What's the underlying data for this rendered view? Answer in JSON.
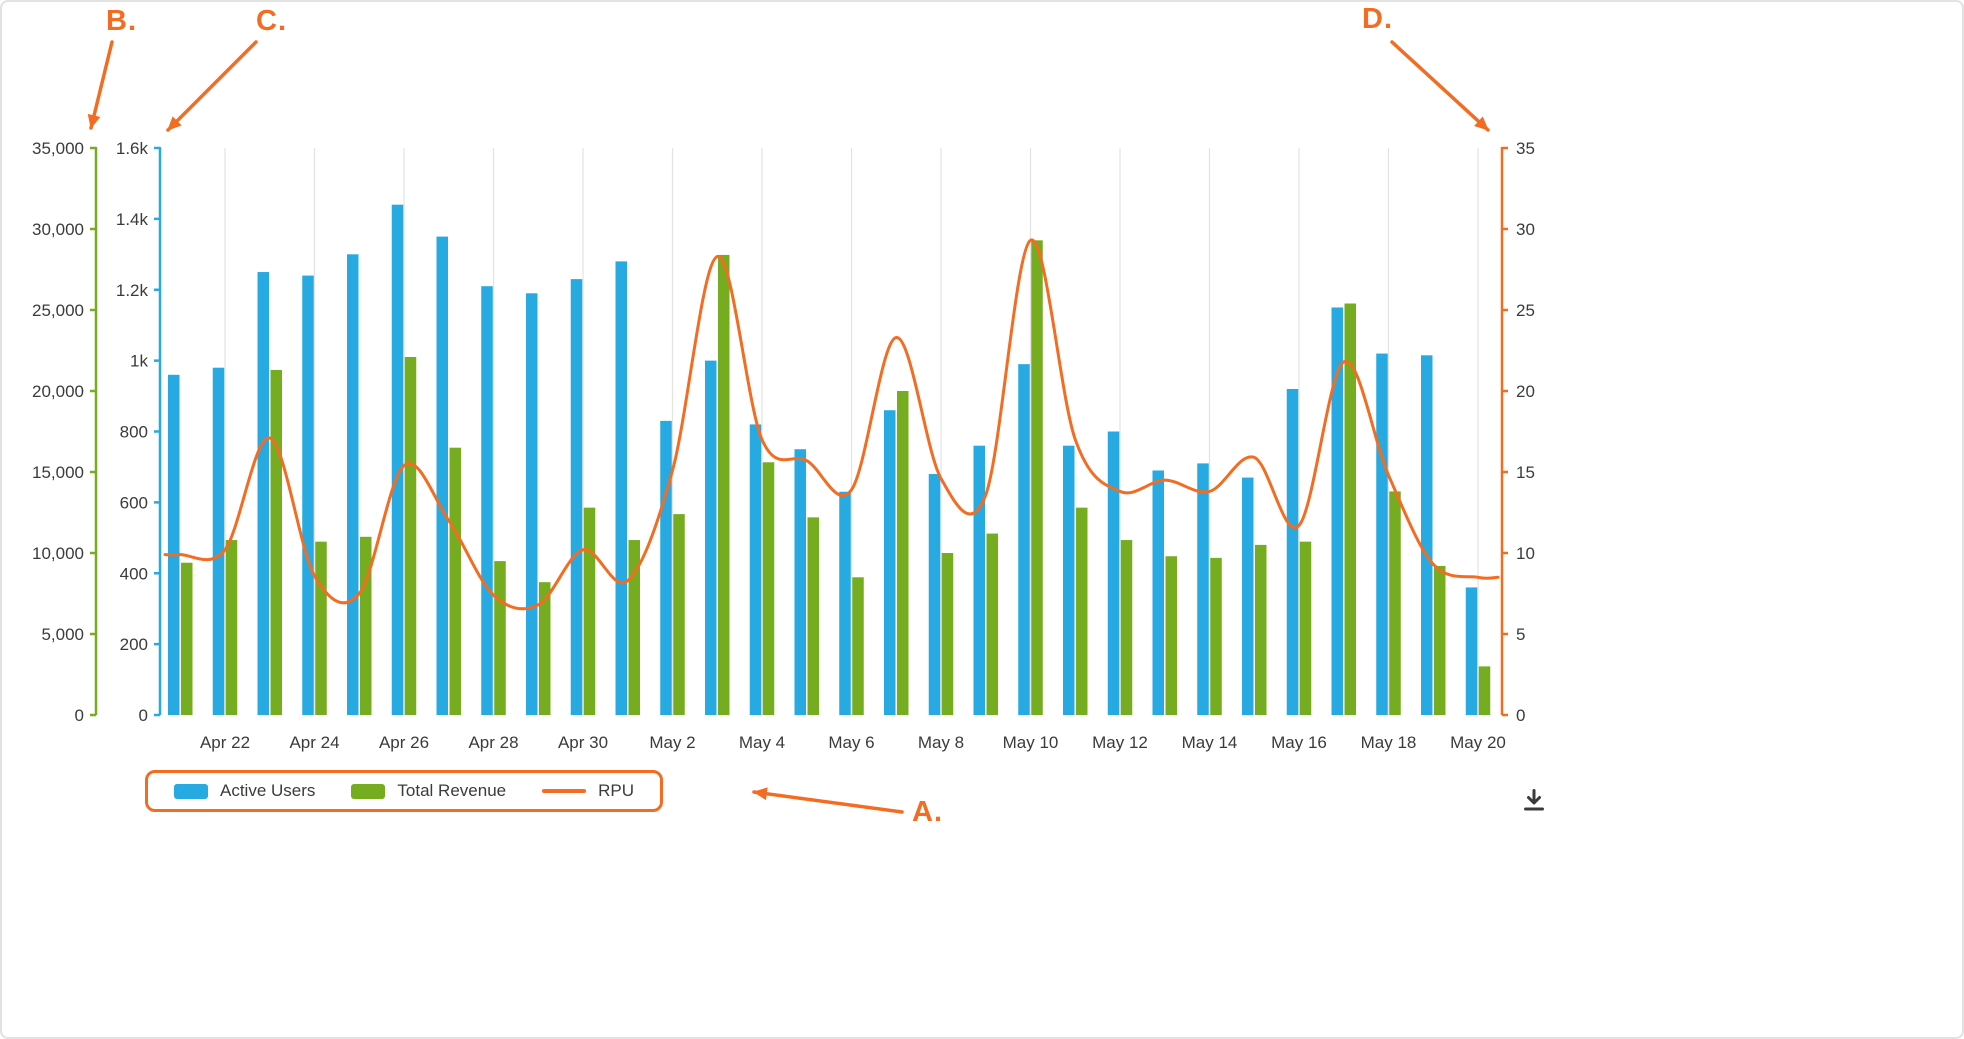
{
  "theme": {
    "accent_orange": "#F36C21",
    "bar_cyan": "#27AAE1",
    "bar_green": "#76AC1F",
    "grid_color": "#E3E3E3",
    "text_color": "#3B3B3B"
  },
  "annotations": {
    "a": {
      "label": "A.",
      "points_to": "legend"
    },
    "b": {
      "label": "B.",
      "points_to": "revenue-axis"
    },
    "c": {
      "label": "C.",
      "points_to": "users-axis"
    },
    "d": {
      "label": "D.",
      "points_to": "rpu-axis"
    }
  },
  "legend": {
    "border_color": "#F36C21",
    "items": [
      "Active Users",
      "Total Revenue",
      "RPU"
    ]
  },
  "icons": {
    "download": "download-icon"
  },
  "chart_data": {
    "type": "bar",
    "subtype": "grouped bars + smooth line, multi-axis combo",
    "x": [
      "Apr 21",
      "Apr 22",
      "Apr 23",
      "Apr 24",
      "Apr 25",
      "Apr 26",
      "Apr 27",
      "Apr 28",
      "Apr 29",
      "Apr 30",
      "May 1",
      "May 2",
      "May 3",
      "May 4",
      "May 5",
      "May 6",
      "May 7",
      "May 8",
      "May 9",
      "May 10",
      "May 11",
      "May 12",
      "May 13",
      "May 14",
      "May 15",
      "May 16",
      "May 17",
      "May 18",
      "May 19",
      "May 20"
    ],
    "x_tick_labels": [
      "Apr 22",
      "Apr 24",
      "Apr 26",
      "Apr 28",
      "Apr 30",
      "May 2",
      "May 4",
      "May 6",
      "May 8",
      "May 10",
      "May 12",
      "May 14",
      "May 16",
      "May 18",
      "May 20"
    ],
    "series": [
      {
        "name": "Active Users",
        "type": "bar",
        "color": "#27AAE1",
        "axis": "users",
        "values": [
          960,
          980,
          1250,
          1240,
          1300,
          1440,
          1350,
          1210,
          1190,
          1230,
          1280,
          830,
          1000,
          820,
          750,
          630,
          860,
          680,
          760,
          990,
          760,
          800,
          690,
          710,
          670,
          920,
          1150,
          1020,
          1015,
          360
        ]
      },
      {
        "name": "Total Revenue",
        "type": "bar",
        "color": "#76AC1F",
        "axis": "revenue",
        "values": [
          9400,
          10800,
          21300,
          10700,
          11000,
          22100,
          16500,
          9500,
          8200,
          12800,
          10800,
          12400,
          28400,
          15600,
          12200,
          8500,
          20000,
          10000,
          11200,
          29300,
          12800,
          10800,
          9800,
          9700,
          10500,
          10700,
          25400,
          13800,
          9200,
          3000
        ]
      },
      {
        "name": "RPU",
        "type": "line",
        "color": "#F36C21",
        "axis": "rpu",
        "values": [
          9.9,
          10.2,
          17.1,
          8.6,
          7.5,
          15.4,
          12.0,
          7.4,
          6.8,
          10.2,
          8.3,
          15.1,
          28.3,
          17.0,
          15.7,
          13.9,
          23.3,
          14.6,
          13.6,
          29.3,
          17.0,
          13.8,
          14.5,
          13.8,
          15.9,
          11.7,
          21.8,
          14.8,
          9.3,
          8.5
        ]
      }
    ],
    "axes": {
      "revenue": {
        "position": "outer-left",
        "color": "#76AC1F",
        "min": 0,
        "max": 35000,
        "tick_labels": [
          "0",
          "5,000",
          "10,000",
          "15,000",
          "20,000",
          "25,000",
          "30,000",
          "35,000"
        ]
      },
      "users": {
        "position": "inner-left",
        "color": "#27AAE1",
        "min": 0,
        "max": 1600,
        "tick_labels": [
          "0",
          "200",
          "400",
          "600",
          "800",
          "1k",
          "1.2k",
          "1.4k",
          "1.6k"
        ]
      },
      "rpu": {
        "position": "right",
        "color": "#F36C21",
        "min": 0,
        "max": 35,
        "tick_labels": [
          "0",
          "5",
          "10",
          "15",
          "20",
          "25",
          "30",
          "35"
        ]
      }
    },
    "grid": {
      "vertical": true,
      "horizontal": false
    },
    "legend_position": "bottom-left"
  }
}
